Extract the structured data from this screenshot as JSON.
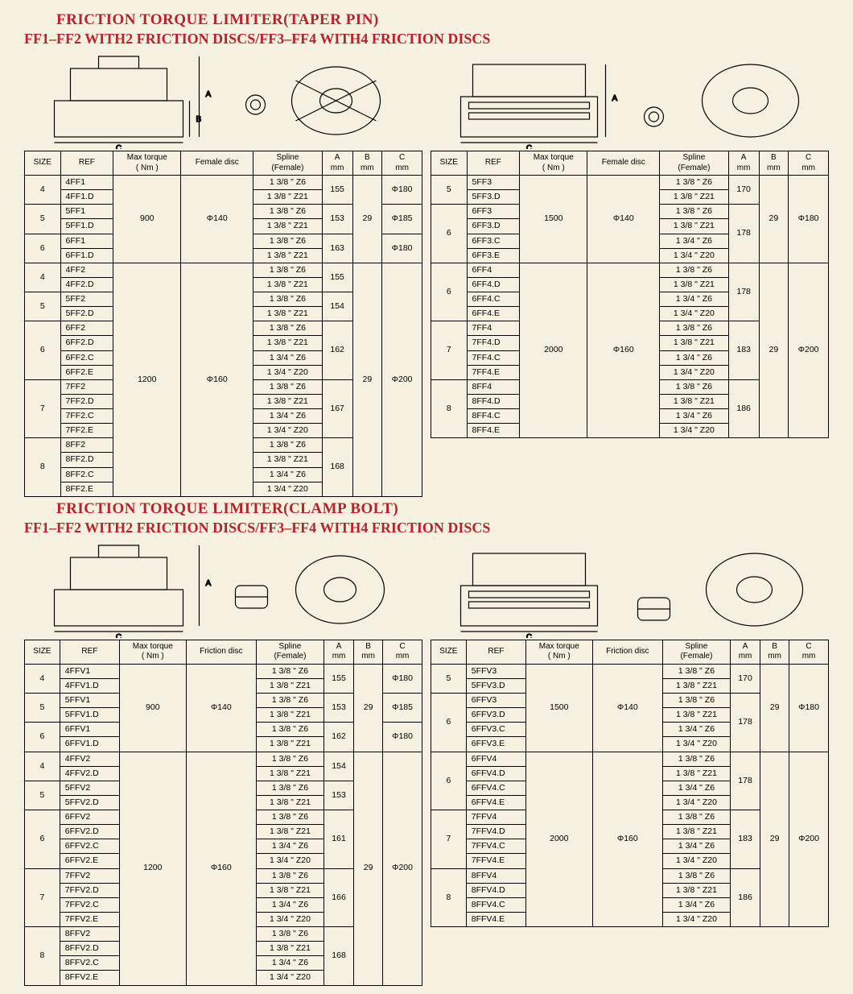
{
  "colors": {
    "title": "#b8232a",
    "background": "#f5f0e0",
    "border": "#000000"
  },
  "section1": {
    "title": "FRICTION TORQUE LIMITER(TAPER PIN)",
    "subtitle": "FF1–FF2 WITH2 FRICTION DISCS/FF3–FF4 WITH4 FRICTION DISCS",
    "left": {
      "headers": [
        "SIZE",
        "REF",
        "Max torque ( Nm )",
        "Female disc",
        "Spline (Female)",
        "A mm",
        "B mm",
        "C mm"
      ],
      "groups": [
        {
          "torque": "900",
          "disc": "Φ140",
          "b": "29",
          "sizes": [
            {
              "size": "4",
              "a": "155",
              "c": "Φ180",
              "rows": [
                [
                  "4FF1",
                  "1 3/8 \" Z6"
                ],
                [
                  "4FF1.D",
                  "1 3/8 \" Z21"
                ]
              ]
            },
            {
              "size": "5",
              "a": "153",
              "c": "Φ185",
              "rows": [
                [
                  "5FF1",
                  "1 3/8 \" Z6"
                ],
                [
                  "5FF1.D",
                  "1 3/8 \" Z21"
                ]
              ]
            },
            {
              "size": "6",
              "a": "163",
              "c": "Φ180",
              "rows": [
                [
                  "6FF1",
                  "1 3/8 \" Z6"
                ],
                [
                  "6FF1.D",
                  "1 3/8 \" Z21"
                ]
              ]
            }
          ]
        },
        {
          "torque": "1200",
          "disc": "Φ160",
          "b": "29",
          "c": "Φ200",
          "sizes": [
            {
              "size": "4",
              "a": "155",
              "rows": [
                [
                  "4FF2",
                  "1 3/8 \" Z6"
                ],
                [
                  "4FF2.D",
                  "1 3/8 \" Z21"
                ]
              ]
            },
            {
              "size": "5",
              "a": "154",
              "rows": [
                [
                  "5FF2",
                  "1 3/8 \" Z6"
                ],
                [
                  "5FF2.D",
                  "1 3/8 \" Z21"
                ]
              ]
            },
            {
              "size": "6",
              "a": "162",
              "rows": [
                [
                  "6FF2",
                  "1 3/8 \" Z6"
                ],
                [
                  "6FF2.D",
                  "1 3/8 \" Z21"
                ],
                [
                  "6FF2.C",
                  "1 3/4 \" Z6"
                ],
                [
                  "6FF2.E",
                  "1 3/4 \" Z20"
                ]
              ]
            },
            {
              "size": "7",
              "a": "167",
              "rows": [
                [
                  "7FF2",
                  "1 3/8 \" Z6"
                ],
                [
                  "7FF2.D",
                  "1 3/8 \" Z21"
                ],
                [
                  "7FF2.C",
                  "1 3/4 \" Z6"
                ],
                [
                  "7FF2.E",
                  "1 3/4 \" Z20"
                ]
              ]
            },
            {
              "size": "8",
              "a": "168",
              "rows": [
                [
                  "8FF2",
                  "1 3/8 \" Z6"
                ],
                [
                  "8FF2.D",
                  "1 3/8 \" Z21"
                ],
                [
                  "8FF2.C",
                  "1 3/4 \" Z6"
                ],
                [
                  "8FF2.E",
                  "1 3/4 \" Z20"
                ]
              ]
            }
          ]
        }
      ]
    },
    "right": {
      "headers": [
        "SIZE",
        "REF",
        "Max torque ( Nm )",
        "Female disc",
        "Spline (Female)",
        "A mm",
        "B mm",
        "C mm"
      ],
      "groups": [
        {
          "torque": "1500",
          "disc": "Φ140",
          "b": "29",
          "c": "Φ180",
          "sizes": [
            {
              "size": "5",
              "a": "170",
              "rows": [
                [
                  "5FF3",
                  "1 3/8 \" Z6"
                ],
                [
                  "5FF3.D",
                  "1 3/8 \" Z21"
                ]
              ]
            },
            {
              "size": "6",
              "a": "178",
              "rows": [
                [
                  "6FF3",
                  "1 3/8 \" Z6"
                ],
                [
                  "6FF3.D",
                  "1 3/8 \" Z21"
                ],
                [
                  "6FF3.C",
                  "1 3/4 \" Z6"
                ],
                [
                  "6FF3.E",
                  "1 3/4 \" Z20"
                ]
              ]
            }
          ]
        },
        {
          "torque": "2000",
          "disc": "Φ160",
          "b": "29",
          "c": "Φ200",
          "sizes": [
            {
              "size": "6",
              "a": "178",
              "rows": [
                [
                  "6FF4",
                  "1 3/8 \" Z6"
                ],
                [
                  "6FF4.D",
                  "1 3/8 \" Z21"
                ],
                [
                  "6FF4.C",
                  "1 3/4 \" Z6"
                ],
                [
                  "6FF4.E",
                  "1 3/4 \" Z20"
                ]
              ]
            },
            {
              "size": "7",
              "a": "183",
              "rows": [
                [
                  "7FF4",
                  "1 3/8 \" Z6"
                ],
                [
                  "7FF4.D",
                  "1 3/8 \" Z21"
                ],
                [
                  "7FF4.C",
                  "1 3/4 \" Z6"
                ],
                [
                  "7FF4.E",
                  "1 3/4 \" Z20"
                ]
              ]
            },
            {
              "size": "8",
              "a": "186",
              "rows": [
                [
                  "8FF4",
                  "1 3/8 \" Z6"
                ],
                [
                  "8FF4.D",
                  "1 3/8 \" Z21"
                ],
                [
                  "8FF4.C",
                  "1 3/4 \" Z6"
                ],
                [
                  "8FF4.E",
                  "1 3/4 \" Z20"
                ]
              ]
            }
          ]
        }
      ]
    }
  },
  "section2": {
    "title": "FRICTION TORQUE LIMITER(CLAMP BOLT)",
    "subtitle": "FF1–FF2 WITH2 FRICTION DISCS/FF3–FF4 WITH4 FRICTION DISCS",
    "left": {
      "headers": [
        "SIZE",
        "REF",
        "Max torque ( Nm )",
        "Friction disc",
        "Spline (Female)",
        "A mm",
        "B mm",
        "C mm"
      ],
      "groups": [
        {
          "torque": "900",
          "disc": "Φ140",
          "b": "29",
          "sizes": [
            {
              "size": "4",
              "a": "155",
              "c": "Φ180",
              "rows": [
                [
                  "4FFV1",
                  "1 3/8 \" Z6"
                ],
                [
                  "4FFV1.D",
                  "1 3/8 \" Z21"
                ]
              ]
            },
            {
              "size": "5",
              "a": "153",
              "c": "Φ185",
              "rows": [
                [
                  "5FFV1",
                  "1 3/8 \" Z6"
                ],
                [
                  "5FFV1.D",
                  "1 3/8 \" Z21"
                ]
              ]
            },
            {
              "size": "6",
              "a": "162",
              "c": "Φ180",
              "rows": [
                [
                  "6FFV1",
                  "1 3/8 \" Z6"
                ],
                [
                  "6FFV1.D",
                  "1 3/8 \" Z21"
                ]
              ]
            }
          ]
        },
        {
          "torque": "1200",
          "disc": "Φ160",
          "b": "29",
          "c": "Φ200",
          "sizes": [
            {
              "size": "4",
              "a": "154",
              "rows": [
                [
                  "4FFV2",
                  "1 3/8 \" Z6"
                ],
                [
                  "4FFV2.D",
                  "1 3/8 \" Z21"
                ]
              ]
            },
            {
              "size": "5",
              "a": "153",
              "rows": [
                [
                  "5FFV2",
                  "1 3/8 \" Z6"
                ],
                [
                  "5FFV2.D",
                  "1 3/8 \" Z21"
                ]
              ]
            },
            {
              "size": "6",
              "a": "161",
              "rows": [
                [
                  "6FFV2",
                  "1 3/8 \" Z6"
                ],
                [
                  "6FFV2.D",
                  "1 3/8 \" Z21"
                ],
                [
                  "6FFV2.C",
                  "1 3/4 \" Z6"
                ],
                [
                  "6FFV2.E",
                  "1 3/4 \" Z20"
                ]
              ]
            },
            {
              "size": "7",
              "a": "166",
              "rows": [
                [
                  "7FFV2",
                  "1 3/8 \" Z6"
                ],
                [
                  "7FFV2.D",
                  "1 3/8 \" Z21"
                ],
                [
                  "7FFV2.C",
                  "1 3/4 \" Z6"
                ],
                [
                  "7FFV2.E",
                  "1 3/4 \" Z20"
                ]
              ]
            },
            {
              "size": "8",
              "a": "168",
              "rows": [
                [
                  "8FFV2",
                  "1 3/8 \" Z6"
                ],
                [
                  "8FFV2.D",
                  "1 3/8 \" Z21"
                ],
                [
                  "8FFV2.C",
                  "1 3/4 \" Z6"
                ],
                [
                  "8FFV2.E",
                  "1 3/4 \" Z20"
                ]
              ]
            }
          ]
        }
      ]
    },
    "right": {
      "headers": [
        "SIZE",
        "REF",
        "Max torque ( Nm )",
        "Friction disc",
        "Spline (Female)",
        "A mm",
        "B mm",
        "C mm"
      ],
      "groups": [
        {
          "torque": "1500",
          "disc": "Φ140",
          "b": "29",
          "c": "Φ180",
          "sizes": [
            {
              "size": "5",
              "a": "170",
              "rows": [
                [
                  "5FFV3",
                  "1 3/8 \" Z6"
                ],
                [
                  "5FFV3.D",
                  "1 3/8 \" Z21"
                ]
              ]
            },
            {
              "size": "6",
              "a": "178",
              "rows": [
                [
                  "6FFV3",
                  "1 3/8 \" Z6"
                ],
                [
                  "6FFV3.D",
                  "1 3/8 \" Z21"
                ],
                [
                  "6FFV3.C",
                  "1 3/4 \" Z6"
                ],
                [
                  "6FFV3.E",
                  "1 3/4 \" Z20"
                ]
              ]
            }
          ]
        },
        {
          "torque": "2000",
          "disc": "Φ160",
          "b": "29",
          "c": "Φ200",
          "sizes": [
            {
              "size": "6",
              "a": "178",
              "rows": [
                [
                  "6FFV4",
                  "1 3/8 \" Z6"
                ],
                [
                  "6FFV4.D",
                  "1 3/8 \" Z21"
                ],
                [
                  "6FFV4.C",
                  "1 3/4 \" Z6"
                ],
                [
                  "6FFV4.E",
                  "1 3/4 \" Z20"
                ]
              ]
            },
            {
              "size": "7",
              "a": "183",
              "rows": [
                [
                  "7FFV4",
                  "1 3/8 \" Z6"
                ],
                [
                  "7FFV4.D",
                  "1 3/8 \" Z21"
                ],
                [
                  "7FFV4.C",
                  "1 3/4 \" Z6"
                ],
                [
                  "7FFV4.E",
                  "1 3/4 \" Z20"
                ]
              ]
            },
            {
              "size": "8",
              "a": "186",
              "rows": [
                [
                  "8FFV4",
                  "1 3/8 \" Z6"
                ],
                [
                  "8FFV4.D",
                  "1 3/8 \" Z21"
                ],
                [
                  "8FFV4.C",
                  "1 3/4 \" Z6"
                ],
                [
                  "8FFV4.E",
                  "1 3/4 \" Z20"
                ]
              ]
            }
          ]
        }
      ]
    }
  }
}
